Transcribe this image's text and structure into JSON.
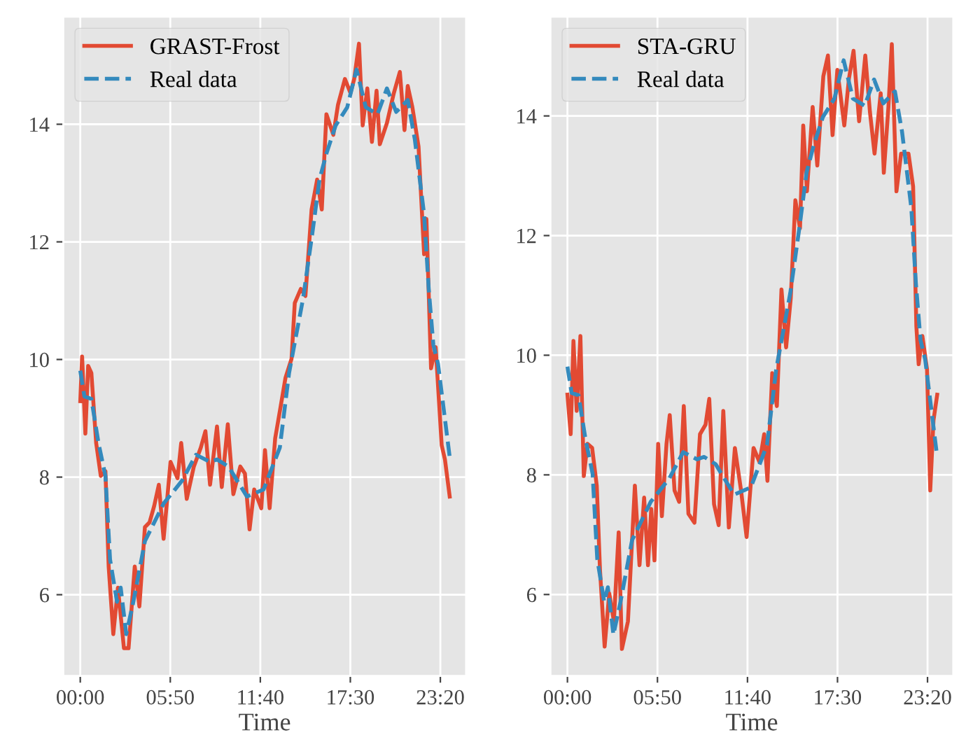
{
  "chart_data": [
    {
      "type": "line",
      "xlabel": "Time",
      "xlim": [
        -1.1,
        25.0
      ],
      "ylim": [
        4.62,
        15.83
      ],
      "xticks": [
        {
          "value": 0,
          "label": "00:00"
        },
        {
          "value": 5.833,
          "label": "05:50"
        },
        {
          "value": 11.667,
          "label": "11:40"
        },
        {
          "value": 17.5,
          "label": "17:30"
        },
        {
          "value": 23.333,
          "label": "23:20"
        }
      ],
      "yticks": [
        6,
        8,
        10,
        12,
        14
      ],
      "grid": true,
      "legend": "top left",
      "series": [
        {
          "name": "GRAST-Frost",
          "color": "#e24a33",
          "line_style": "solid",
          "x": [
            0,
            0.12,
            0.33,
            0.51,
            0.72,
            1.03,
            1.33,
            1.63,
            1.84,
            2.14,
            2.44,
            2.83,
            3.13,
            3.53,
            3.83,
            4.19,
            4.49,
            4.79,
            5.09,
            5.4,
            5.85,
            6.3,
            6.54,
            6.9,
            7.36,
            7.81,
            8.11,
            8.41,
            8.86,
            9.17,
            9.56,
            9.92,
            10.37,
            10.67,
            10.97,
            11.27,
            11.73,
            11.97,
            12.27,
            12.63,
            12.99,
            13.3,
            13.69,
            13.9,
            14.29,
            14.59,
            14.99,
            15.35,
            15.65,
            15.95,
            16.4,
            16.7,
            17.15,
            17.51,
            17.75,
            18.06,
            18.3,
            18.6,
            18.9,
            19.2,
            19.41,
            19.87,
            20.32,
            20.71,
            21.01,
            21.22,
            21.52,
            21.92,
            22.28,
            22.43,
            22.73,
            23.03,
            23.42,
            23.63,
            23.94
          ],
          "values": [
            9.29,
            10.05,
            8.74,
            9.89,
            9.77,
            8.58,
            8.02,
            8.1,
            6.48,
            5.33,
            6.12,
            5.09,
            5.09,
            6.48,
            5.8,
            7.15,
            7.23,
            7.51,
            7.87,
            6.95,
            8.26,
            7.98,
            8.58,
            7.63,
            8.18,
            8.5,
            8.78,
            7.87,
            8.86,
            7.83,
            8.9,
            7.71,
            8.18,
            8.06,
            7.11,
            7.79,
            7.47,
            8.46,
            7.47,
            8.66,
            9.21,
            9.69,
            10.01,
            10.96,
            11.2,
            11.08,
            12.55,
            13.06,
            12.55,
            14.17,
            13.82,
            14.33,
            14.77,
            14.53,
            14.77,
            15.37,
            13.98,
            14.61,
            13.7,
            14.57,
            13.66,
            14.02,
            14.53,
            14.89,
            13.9,
            14.65,
            14.29,
            13.62,
            11.79,
            12.39,
            9.85,
            10.21,
            8.54,
            8.3,
            7.67
          ]
        },
        {
          "name": "Real data",
          "color": "#348abd",
          "line_style": "dashed",
          "x": [
            0,
            0.27,
            0.72,
            1.18,
            1.63,
            1.93,
            2.38,
            2.62,
            2.98,
            3.44,
            4.19,
            5.4,
            6.6,
            7.5,
            8.4,
            8.86,
            9.6,
            10.8,
            11.88,
            12.93,
            13.53,
            14.44,
            15.04,
            15.5,
            15.95,
            16.55,
            17.3,
            17.9,
            18.5,
            19.26,
            19.87,
            20.47,
            21.22,
            21.68,
            22.28,
            22.58,
            22.88,
            23.18,
            23.94
          ],
          "values": [
            9.81,
            9.37,
            9.33,
            8.58,
            8.02,
            6.6,
            5.88,
            6.12,
            5.33,
            5.88,
            6.91,
            7.55,
            7.94,
            8.38,
            8.26,
            8.3,
            8.18,
            7.67,
            7.79,
            8.5,
            9.77,
            11.04,
            12.15,
            13.06,
            13.5,
            13.98,
            14.29,
            14.93,
            14.29,
            14.17,
            14.61,
            14.21,
            14.41,
            13.74,
            12.47,
            11.2,
            10.25,
            9.93,
            8.34
          ]
        }
      ]
    },
    {
      "type": "line",
      "xlabel": "Time",
      "xlim": [
        -1.1,
        25.0
      ],
      "ylim": [
        4.64,
        15.66
      ],
      "xticks": [
        {
          "value": 0,
          "label": "00:00"
        },
        {
          "value": 5.833,
          "label": "05:50"
        },
        {
          "value": 11.667,
          "label": "11:40"
        },
        {
          "value": 17.5,
          "label": "17:30"
        },
        {
          "value": 23.333,
          "label": "23:20"
        }
      ],
      "yticks": [
        6,
        8,
        10,
        12,
        14
      ],
      "grid": true,
      "legend": "top left",
      "series": [
        {
          "name": "STA-GRU",
          "color": "#e24a33",
          "line_style": "solid",
          "x": [
            0,
            0.21,
            0.39,
            0.6,
            0.84,
            1.06,
            1.3,
            1.6,
            1.9,
            2.11,
            2.41,
            2.71,
            3.01,
            3.32,
            3.53,
            3.92,
            4.37,
            4.67,
            4.97,
            5.22,
            5.43,
            5.64,
            5.88,
            6.12,
            6.42,
            6.63,
            6.94,
            7.24,
            7.54,
            7.84,
            8.23,
            8.59,
            8.95,
            9.19,
            9.5,
            9.8,
            10.1,
            10.46,
            10.85,
            11.25,
            11.61,
            12.06,
            12.45,
            12.75,
            12.96,
            13.27,
            13.57,
            13.87,
            14.17,
            14.47,
            14.77,
            15.07,
            15.28,
            15.52,
            15.89,
            16.19,
            16.58,
            16.88,
            17.18,
            17.49,
            17.94,
            18.24,
            18.54,
            18.9,
            19.3,
            19.6,
            19.9,
            20.3,
            20.5,
            20.8,
            21.02,
            21.32,
            21.62,
            22.1,
            22.4,
            22.61,
            22.76,
            23.0,
            23.3,
            23.51,
            23.72,
            23.96
          ],
          "values": [
            9.34,
            8.68,
            10.24,
            9.07,
            10.32,
            7.98,
            8.52,
            8.45,
            7.82,
            6.41,
            5.13,
            6.02,
            5.55,
            7.04,
            5.09,
            5.55,
            7.82,
            6.49,
            7.62,
            6.49,
            7.43,
            6.57,
            8.52,
            7.31,
            8.52,
            9.0,
            7.74,
            7.55,
            9.15,
            7.35,
            7.2,
            8.68,
            8.84,
            9.27,
            7.51,
            7.16,
            9.07,
            7.12,
            8.45,
            7.74,
            6.96,
            8.45,
            8.21,
            8.68,
            7.9,
            9.7,
            9.15,
            11.1,
            10.13,
            10.95,
            12.59,
            12.12,
            13.84,
            12.74,
            14.15,
            13.17,
            14.66,
            15.01,
            13.68,
            14.77,
            13.84,
            14.62,
            15.09,
            13.91,
            15.01,
            14.07,
            13.37,
            14.38,
            13.05,
            14.15,
            15.2,
            12.74,
            13.37,
            13.37,
            12.82,
            10.48,
            9.85,
            10.32,
            9.77,
            7.74,
            8.91,
            9.34
          ]
        },
        {
          "name": "Real data",
          "color": "#348abd",
          "line_style": "dashed",
          "x": [
            0,
            0.27,
            0.72,
            1.18,
            1.63,
            1.93,
            2.38,
            2.62,
            2.98,
            3.44,
            4.19,
            5.4,
            6.6,
            7.5,
            8.4,
            8.86,
            9.6,
            10.8,
            11.88,
            12.93,
            13.53,
            14.44,
            15.04,
            15.5,
            15.95,
            16.55,
            17.3,
            17.9,
            18.5,
            19.26,
            19.87,
            20.47,
            21.22,
            21.68,
            22.28,
            22.58,
            22.88,
            23.18,
            23.94
          ],
          "values": [
            9.81,
            9.37,
            9.33,
            8.58,
            8.02,
            6.6,
            5.88,
            6.12,
            5.33,
            5.88,
            6.91,
            7.55,
            7.94,
            8.38,
            8.26,
            8.3,
            8.18,
            7.67,
            7.79,
            8.5,
            9.77,
            11.04,
            12.15,
            13.06,
            13.5,
            13.98,
            14.29,
            14.93,
            14.29,
            14.17,
            14.61,
            14.21,
            14.41,
            13.74,
            12.47,
            11.2,
            10.25,
            9.93,
            8.34
          ]
        }
      ]
    }
  ]
}
